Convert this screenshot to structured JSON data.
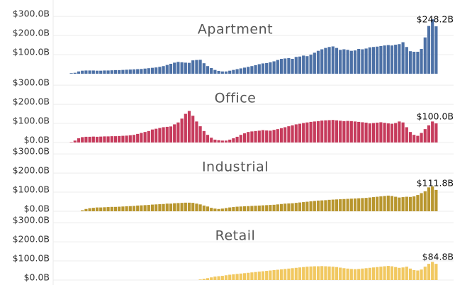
{
  "chart_data": [
    {
      "type": "bar",
      "title": "Apartment",
      "color": "#4d71a6",
      "ylim": [
        0,
        360
      ],
      "grid": true,
      "yticks": [
        {
          "value": 100,
          "label": "$100.0B"
        },
        {
          "value": 200,
          "label": "$200.0B"
        },
        {
          "value": 300,
          "label": "$300.0B"
        }
      ],
      "values": [
        3,
        5,
        12,
        16,
        17,
        17,
        17,
        16,
        16,
        17,
        17,
        18,
        19,
        19,
        20,
        21,
        22,
        23,
        24,
        25,
        27,
        29,
        31,
        33,
        36,
        40,
        46,
        52,
        58,
        62,
        60,
        58,
        57,
        70,
        72,
        73,
        55,
        40,
        30,
        20,
        15,
        12,
        12,
        16,
        20,
        24,
        28,
        32,
        36,
        40,
        45,
        50,
        54,
        56,
        60,
        65,
        72,
        78,
        80,
        82,
        78,
        88,
        90,
        95,
        92,
        100,
        110,
        120,
        128,
        135,
        140,
        143,
        135,
        125,
        128,
        125,
        120,
        122,
        130,
        128,
        132,
        138,
        140,
        142,
        145,
        148,
        150,
        148,
        152,
        155,
        165,
        140,
        118,
        115,
        115,
        130,
        190,
        250,
        285,
        248.2
      ],
      "value_labels": [
        null,
        null,
        null,
        null,
        null,
        null,
        null,
        null,
        null,
        null,
        null,
        null,
        null,
        null,
        null,
        null,
        null,
        null,
        null,
        null,
        null,
        null,
        null,
        null,
        null,
        null,
        null,
        null,
        null,
        null,
        null,
        null,
        null,
        null,
        null,
        null,
        null,
        null,
        null,
        null,
        null,
        null,
        null,
        null,
        null,
        null,
        null,
        null,
        null,
        null,
        null,
        null,
        null,
        null,
        null,
        null,
        null,
        null,
        null,
        null,
        null,
        null,
        null,
        null,
        null,
        null,
        null,
        null,
        null,
        null,
        null,
        null,
        null,
        null,
        null,
        null,
        null,
        null,
        null,
        null,
        null,
        null,
        null,
        null,
        null,
        null,
        null,
        null,
        null,
        null,
        null,
        null,
        null,
        null,
        null,
        null,
        null,
        null,
        null,
        "$248.2B"
      ]
    },
    {
      "type": "bar",
      "title": "Office",
      "color": "#c63b5c",
      "ylim": [
        0,
        360
      ],
      "grid": true,
      "yticks": [
        {
          "value": 0,
          "label": "$0.0B"
        },
        {
          "value": 100,
          "label": "$100.0B"
        },
        {
          "value": 200,
          "label": "$200.0B"
        },
        {
          "value": 300,
          "label": "$300.0B"
        }
      ],
      "values": [
        2,
        10,
        22,
        28,
        30,
        30,
        31,
        30,
        31,
        32,
        32,
        33,
        33,
        34,
        35,
        36,
        38,
        40,
        45,
        50,
        55,
        60,
        68,
        72,
        76,
        80,
        82,
        84,
        95,
        105,
        125,
        150,
        165,
        140,
        110,
        85,
        60,
        40,
        25,
        15,
        12,
        10,
        10,
        15,
        22,
        30,
        40,
        48,
        55,
        58,
        60,
        62,
        65,
        63,
        62,
        66,
        70,
        75,
        80,
        85,
        90,
        95,
        98,
        102,
        105,
        108,
        110,
        112,
        115,
        116,
        117,
        118,
        116,
        114,
        112,
        113,
        112,
        110,
        108,
        106,
        104,
        100,
        102,
        104,
        106,
        103,
        100,
        98,
        102,
        110,
        105,
        80,
        55,
        40,
        35,
        50,
        70,
        90,
        110,
        100
      ],
      "value_labels": [
        null,
        null,
        null,
        null,
        null,
        null,
        null,
        null,
        null,
        null,
        null,
        null,
        null,
        null,
        null,
        null,
        null,
        null,
        null,
        null,
        null,
        null,
        null,
        null,
        null,
        null,
        null,
        null,
        null,
        null,
        null,
        null,
        null,
        null,
        null,
        null,
        null,
        null,
        null,
        null,
        null,
        null,
        null,
        null,
        null,
        null,
        null,
        null,
        null,
        null,
        null,
        null,
        null,
        null,
        null,
        null,
        null,
        null,
        null,
        null,
        null,
        null,
        null,
        null,
        null,
        null,
        null,
        null,
        null,
        null,
        null,
        null,
        null,
        null,
        null,
        null,
        null,
        null,
        null,
        null,
        null,
        null,
        null,
        null,
        null,
        null,
        null,
        null,
        null,
        null,
        null,
        null,
        null,
        null,
        null,
        null,
        null,
        null,
        null,
        "$100.0B"
      ]
    },
    {
      "type": "bar",
      "title": "Industrial",
      "color": "#b8962e",
      "ylim": [
        0,
        360
      ],
      "grid": true,
      "yticks": [
        {
          "value": 0,
          "label": "$0.0B"
        },
        {
          "value": 100,
          "label": "$100.0B"
        },
        {
          "value": 200,
          "label": "$200.0B"
        },
        {
          "value": 300,
          "label": "$300.0B"
        }
      ],
      "values": [
        null,
        null,
        null,
        5,
        12,
        16,
        18,
        20,
        20,
        21,
        22,
        23,
        23,
        24,
        25,
        26,
        27,
        28,
        30,
        31,
        32,
        33,
        35,
        36,
        37,
        38,
        40,
        40,
        42,
        43,
        44,
        45,
        45,
        44,
        40,
        36,
        30,
        25,
        18,
        14,
        12,
        14,
        17,
        20,
        22,
        24,
        25,
        26,
        27,
        28,
        29,
        30,
        31,
        32,
        33,
        34,
        36,
        38,
        40,
        41,
        42,
        44,
        46,
        48,
        50,
        52,
        54,
        56,
        57,
        58,
        60,
        61,
        62,
        63,
        64,
        65,
        66,
        67,
        68,
        69,
        70,
        72,
        74,
        76,
        78,
        80,
        82,
        80,
        76,
        72,
        74,
        76,
        75,
        78,
        85,
        95,
        105,
        125,
        130,
        111.8
      ],
      "value_labels": [
        null,
        null,
        null,
        null,
        null,
        null,
        null,
        null,
        null,
        null,
        null,
        null,
        null,
        null,
        null,
        null,
        null,
        null,
        null,
        null,
        null,
        null,
        null,
        null,
        null,
        null,
        null,
        null,
        null,
        null,
        null,
        null,
        null,
        null,
        null,
        null,
        null,
        null,
        null,
        null,
        null,
        null,
        null,
        null,
        null,
        null,
        null,
        null,
        null,
        null,
        null,
        null,
        null,
        null,
        null,
        null,
        null,
        null,
        null,
        null,
        null,
        null,
        null,
        null,
        null,
        null,
        null,
        null,
        null,
        null,
        null,
        null,
        null,
        null,
        null,
        null,
        null,
        null,
        null,
        null,
        null,
        null,
        null,
        null,
        null,
        null,
        null,
        null,
        null,
        null,
        null,
        null,
        null,
        null,
        null,
        null,
        null,
        null,
        null,
        "$111.8B"
      ]
    },
    {
      "type": "bar",
      "title": "Retail",
      "color": "#f1c860",
      "ylim": [
        0,
        360
      ],
      "grid": true,
      "yticks": [
        {
          "value": 0,
          "label": "$0.0B"
        },
        {
          "value": 100,
          "label": "$100.0B"
        },
        {
          "value": 200,
          "label": "$200.0B"
        },
        {
          "value": 300,
          "label": "$300.0B"
        }
      ],
      "values": [
        null,
        null,
        null,
        null,
        null,
        null,
        null,
        null,
        null,
        null,
        null,
        null,
        null,
        null,
        null,
        null,
        null,
        null,
        null,
        null,
        null,
        null,
        null,
        null,
        null,
        null,
        null,
        null,
        null,
        null,
        null,
        null,
        null,
        null,
        null,
        3,
        6,
        10,
        14,
        18,
        20,
        22,
        25,
        28,
        30,
        32,
        34,
        36,
        38,
        40,
        42,
        44,
        46,
        48,
        50,
        52,
        54,
        56,
        58,
        60,
        62,
        64,
        66,
        68,
        70,
        71,
        72,
        72,
        73,
        72,
        71,
        70,
        68,
        65,
        62,
        60,
        58,
        57,
        58,
        60,
        62,
        64,
        66,
        68,
        70,
        72,
        74,
        72,
        68,
        64,
        66,
        70,
        60,
        52,
        50,
        55,
        70,
        85,
        95,
        84.8
      ],
      "value_labels": [
        null,
        null,
        null,
        null,
        null,
        null,
        null,
        null,
        null,
        null,
        null,
        null,
        null,
        null,
        null,
        null,
        null,
        null,
        null,
        null,
        null,
        null,
        null,
        null,
        null,
        null,
        null,
        null,
        null,
        null,
        null,
        null,
        null,
        null,
        null,
        null,
        null,
        null,
        null,
        null,
        null,
        null,
        null,
        null,
        null,
        null,
        null,
        null,
        null,
        null,
        null,
        null,
        null,
        null,
        null,
        null,
        null,
        null,
        null,
        null,
        null,
        null,
        null,
        null,
        null,
        null,
        null,
        null,
        null,
        null,
        null,
        null,
        null,
        null,
        null,
        null,
        null,
        null,
        null,
        null,
        null,
        null,
        null,
        null,
        null,
        null,
        null,
        null,
        null,
        null,
        null,
        null,
        null,
        null,
        null,
        null,
        null,
        null,
        null,
        "$84.8B"
      ]
    }
  ]
}
